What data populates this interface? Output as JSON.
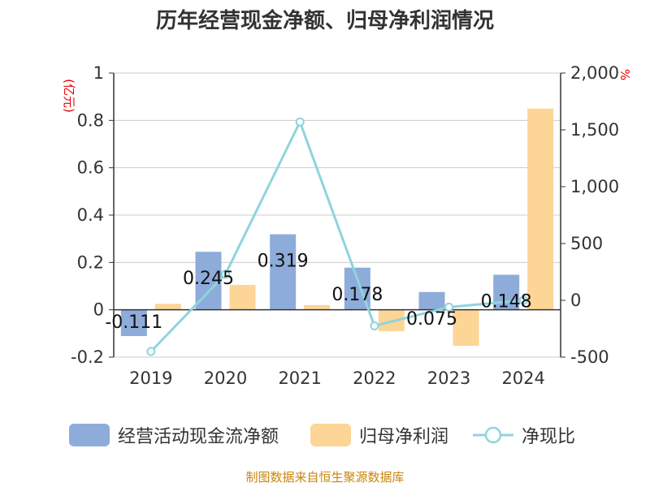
{
  "chart_data": {
    "type": "bar",
    "title": "历年经营现金净额、归母净利润情况",
    "categories": [
      "2019",
      "2020",
      "2021",
      "2022",
      "2023",
      "2024"
    ],
    "left_axis": {
      "unit": "(亿元)",
      "ylim": [
        -0.2,
        1
      ],
      "ticks": [
        -0.2,
        0,
        0.2,
        0.4,
        0.6,
        0.8,
        1
      ],
      "tick_labels": [
        "-0.2",
        "0",
        "0.2",
        "0.4",
        "0.6",
        "0.8",
        "1"
      ]
    },
    "right_axis": {
      "unit": "%",
      "ylim": [
        -500,
        2000
      ],
      "ticks": [
        -500,
        0,
        500,
        1000,
        1500,
        2000
      ],
      "tick_labels": [
        "-500",
        "0",
        "500",
        "1,000",
        "1,500",
        "2,000"
      ]
    },
    "series": [
      {
        "name": "经营活动现金流净额",
        "kind": "bar",
        "axis": "left",
        "color": "#8eacda",
        "values": [
          -0.111,
          0.245,
          0.319,
          0.178,
          0.075,
          0.148
        ],
        "labels": [
          "-0.111",
          "0.245",
          "0.319",
          "0.178",
          "0.075",
          "0.148"
        ]
      },
      {
        "name": "归母净利润",
        "kind": "bar",
        "axis": "left",
        "color": "#fdd596",
        "values": [
          0.025,
          0.105,
          0.02,
          -0.09,
          -0.152,
          0.85
        ]
      },
      {
        "name": "净现比",
        "kind": "line",
        "axis": "right",
        "color": "#8fd4dd",
        "values": [
          -450,
          230,
          1570,
          -225,
          -60,
          0
        ]
      }
    ],
    "grid": true,
    "legend_position": "bottom"
  },
  "source_note": "制图数据来自恒生聚源数据库"
}
